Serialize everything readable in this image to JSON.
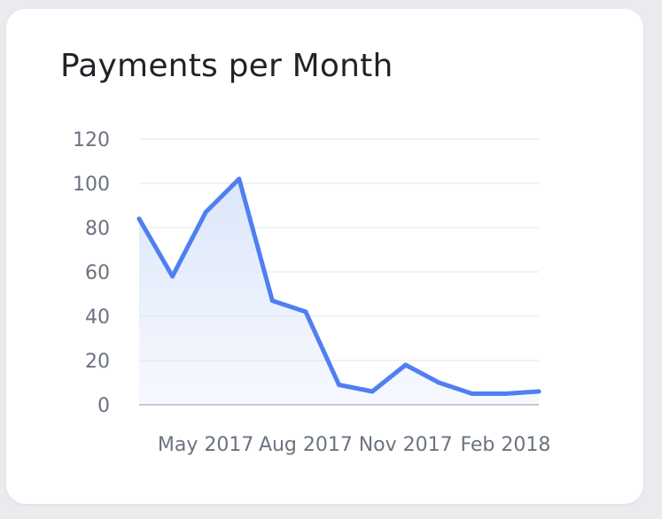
{
  "card": {
    "title": "Payments per Month"
  },
  "chart_data": {
    "type": "area",
    "title": "Payments per Month",
    "xlabel": "",
    "ylabel": "",
    "x": [
      "2017-03",
      "2017-04",
      "2017-05",
      "2017-06",
      "2017-07",
      "2017-08",
      "2017-09",
      "2017-10",
      "2017-11",
      "2017-12",
      "2018-01",
      "2018-02",
      "2018-03"
    ],
    "x_tick_labels": [
      "May 2017",
      "Aug 2017",
      "Nov 2017",
      "Feb 2018"
    ],
    "x_tick_positions": [
      "2017-05",
      "2017-08",
      "2017-11",
      "2018-02"
    ],
    "y_ticks": [
      0,
      20,
      40,
      60,
      80,
      100,
      120
    ],
    "ylim": [
      0,
      120
    ],
    "series": [
      {
        "values": [
          84,
          58,
          87,
          102,
          47,
          42,
          9,
          6,
          18,
          10,
          5,
          5,
          6
        ],
        "color": "#4f7ff0",
        "fill_color": "#dce6fb"
      }
    ],
    "grid": true,
    "legend": "none",
    "gridline_color": "#ebedf0",
    "axis_color": "#b5bac2",
    "tick_label_color": "#6b7380"
  }
}
